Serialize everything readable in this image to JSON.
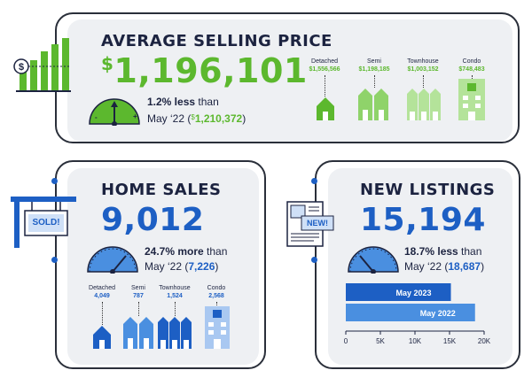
{
  "average_selling_price": {
    "title": "AVERAGE SELLING PRICE",
    "currency": "$",
    "value": "1,196,101",
    "change": "1.2% less",
    "change_suffix": " than",
    "prev_period": "May ‘22 (",
    "prev_currency": "$",
    "prev_value": "1,210,372",
    "prev_close": ")",
    "gauge_minus": "-",
    "gauge_plus": "+",
    "by_type": [
      {
        "label": "Detached",
        "value": "$1,556,566"
      },
      {
        "label": "Semi",
        "value": "$1,198,185"
      },
      {
        "label": "Townhouse",
        "value": "$1,003,152"
      },
      {
        "label": "Condo",
        "value": "$748,483"
      }
    ],
    "accent": "#5cb82e",
    "icon": "price-chart-icon"
  },
  "home_sales": {
    "title": "HOME SALES",
    "value": "9,012",
    "change": "24.7% more",
    "change_suffix": " than",
    "prev_period": "May ‘22 (",
    "prev_value": "7,226",
    "prev_close": ")",
    "sign_text": "SOLD!",
    "by_type": [
      {
        "label": "Detached",
        "value": "4,049"
      },
      {
        "label": "Semi",
        "value": "787"
      },
      {
        "label": "Townhouse",
        "value": "1,524"
      },
      {
        "label": "Condo",
        "value": "2,568"
      }
    ],
    "accent": "#1d5fc4",
    "icon": "sold-sign-icon"
  },
  "new_listings": {
    "title": "NEW LISTINGS",
    "value": "15,194",
    "change": "18.7% less",
    "change_suffix": " than",
    "prev_period": "May ‘22 (",
    "prev_value": "18,687",
    "prev_close": ")",
    "badge_text": "NEW!",
    "icon": "new-listing-flyer-icon"
  },
  "chart_data": {
    "type": "bar",
    "orientation": "horizontal",
    "categories": [
      "May 2023",
      "May 2022"
    ],
    "values": [
      15194,
      18687
    ],
    "xlim": [
      0,
      20000
    ],
    "x_ticks": [
      "0",
      "5K",
      "10K",
      "15K",
      "20K"
    ],
    "colors": [
      "#1d5fc4",
      "#4a8fe0"
    ]
  }
}
